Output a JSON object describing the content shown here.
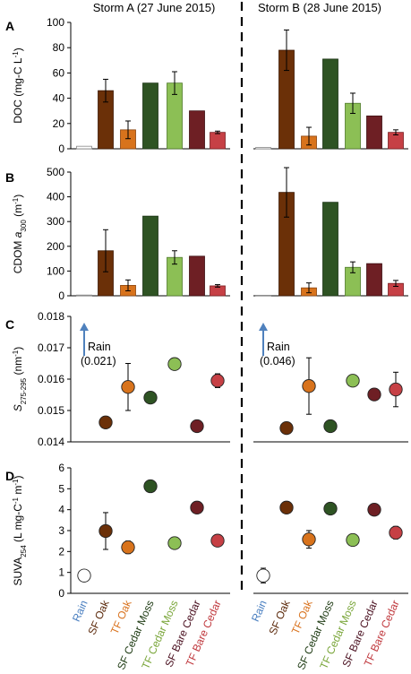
{
  "storms": [
    {
      "title": "Storm A (27 June 2015)"
    },
    {
      "title": "Storm B (28 June 2015)"
    }
  ],
  "categories": [
    {
      "label": "Rain",
      "color": "#4a7fc0",
      "fill": "#ffffff",
      "edge": "#888888"
    },
    {
      "label": "SF Oak",
      "color": "#5c2a0c",
      "fill": "#6b3008",
      "edge": "#3e1a05"
    },
    {
      "label": "TF Oak",
      "color": "#d9731f",
      "fill": "#d8731c",
      "edge": "#8a4410"
    },
    {
      "label": "SF Cedar Moss",
      "color": "#1d3a12",
      "fill": "#2e5323",
      "edge": "#1b3314"
    },
    {
      "label": "TF Cedar Moss",
      "color": "#7aa63a",
      "fill": "#8cbf55",
      "edge": "#4f7a2a"
    },
    {
      "label": "SF Bare Cedar",
      "color": "#4a1020",
      "fill": "#6e1f24",
      "edge": "#3d0f12"
    },
    {
      "label": "TF Bare Cedar",
      "color": "#c0393e",
      "fill": "#c64045",
      "edge": "#7a1e22"
    }
  ],
  "chart_data": [
    {
      "panel": "A",
      "type": "bar",
      "ylabel": "DOC (mg-C L⁻¹)",
      "ylim": [
        0,
        100
      ],
      "yticks": [
        "0",
        "20",
        "40",
        "60",
        "80",
        "100"
      ],
      "series": [
        {
          "storm": "Storm A (27 June 2015)",
          "values": [
            2,
            46,
            15,
            52,
            52,
            30,
            13
          ],
          "errors": [
            0,
            9,
            7,
            0,
            9,
            0,
            1
          ]
        },
        {
          "storm": "Storm B (28 June 2015)",
          "values": [
            1,
            78,
            10,
            71,
            36,
            26,
            13
          ],
          "errors": [
            0,
            16,
            7,
            0,
            8,
            0,
            2
          ]
        }
      ]
    },
    {
      "panel": "B",
      "type": "bar",
      "ylabel": "CDOM a300 (m⁻¹)",
      "ylim": [
        0,
        500
      ],
      "yticks": [
        "0",
        "100",
        "200",
        "300",
        "400",
        "500"
      ],
      "series": [
        {
          "storm": "Storm A (27 June 2015)",
          "values": [
            3,
            182,
            42,
            322,
            155,
            160,
            40
          ],
          "errors": [
            0,
            85,
            22,
            0,
            27,
            0,
            5
          ]
        },
        {
          "storm": "Storm B (28 June 2015)",
          "values": [
            2,
            418,
            32,
            378,
            115,
            130,
            50
          ],
          "errors": [
            0,
            100,
            20,
            0,
            22,
            0,
            12
          ]
        }
      ]
    },
    {
      "panel": "C",
      "type": "scatter",
      "ylabel": "S275-295 (nm⁻¹)",
      "ylim": [
        0.014,
        0.018
      ],
      "yticks": [
        "0.014",
        "0.015",
        "0.016",
        "0.017",
        "0.018"
      ],
      "rain_annotations": [
        "Rain (0.021)",
        "Rain (0.046)"
      ],
      "series": [
        {
          "storm": "Storm A (27 June 2015)",
          "values": [
            null,
            0.01462,
            0.01575,
            0.01541,
            0.01648,
            0.0145,
            0.01595
          ],
          "errors": [
            0,
            0,
            0.00075,
            0,
            0,
            0,
            0.00022
          ]
        },
        {
          "storm": "Storm B (28 June 2015)",
          "values": [
            null,
            0.01444,
            0.01578,
            0.0145,
            0.01595,
            0.01551,
            0.01567
          ],
          "errors": [
            0,
            0.00015,
            0.0009,
            0,
            8e-05,
            0,
            0.00055
          ]
        }
      ]
    },
    {
      "panel": "D",
      "type": "scatter",
      "ylabel": "SUVA254 (L mg-C⁻¹ m⁻¹)",
      "ylim": [
        0,
        6
      ],
      "yticks": [
        "0",
        "1",
        "2",
        "3",
        "4",
        "5",
        "6"
      ],
      "series": [
        {
          "storm": "Storm A (27 June 2015)",
          "values": [
            0.85,
            2.98,
            2.2,
            5.12,
            2.4,
            4.1,
            2.52
          ],
          "errors": [
            0,
            0.88,
            0.3,
            0,
            0,
            0,
            0
          ]
        },
        {
          "storm": "Storm B (28 June 2015)",
          "values": [
            0.85,
            4.1,
            2.58,
            4.05,
            2.55,
            4.0,
            2.9
          ],
          "errors": [
            0.35,
            0,
            0.42,
            0,
            0,
            0,
            0.3
          ]
        }
      ]
    }
  ]
}
